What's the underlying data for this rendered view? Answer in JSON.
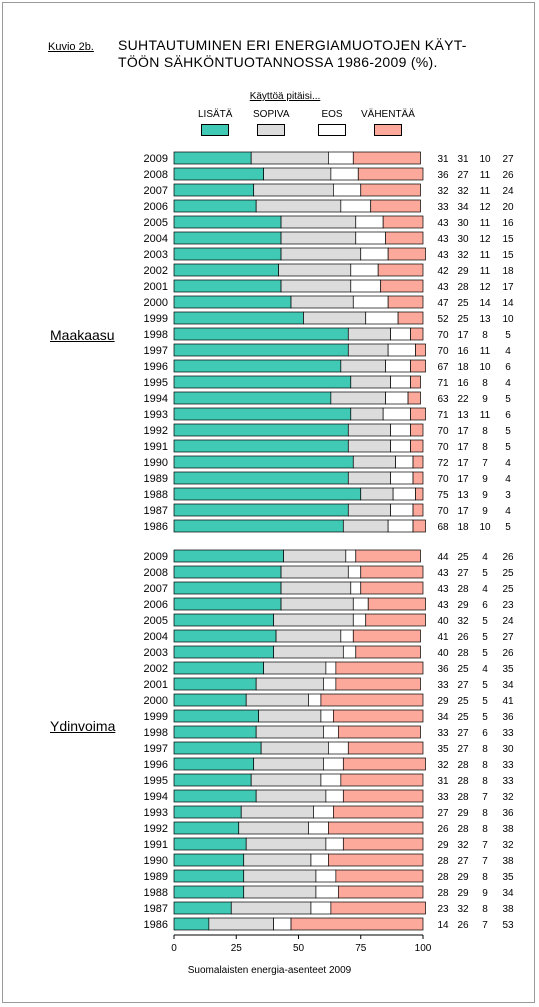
{
  "figure_label": "Kuvio 2b.",
  "title": "SUHTAUTUMINEN ERI ENERGIAMUOTOJEN KÄYT-TÖÖN SÄHKÖNTUOTANNOSSA 1986-2009 (%).",
  "title_line1": "SUHTAUTUMINEN ERI ENERGIAMUOTOJEN KÄYT-",
  "title_line2": "TÖÖN SÄHKÖNTUOTANNOSSA 1986-2009 (%).",
  "source": "Suomalaisten energia-asenteet 2009",
  "colors": {
    "lisata": "#40c9b4",
    "sopiva": "#dcdcdc",
    "eos": "#ffffff",
    "vahentaa": "#fca89a"
  },
  "chart_data": {
    "type": "bar",
    "orientation": "horizontal",
    "stacked": true,
    "legend_title": "Käyttöä pitäisi...",
    "legend_placement": "top",
    "series_names": [
      "LISÄTÄ",
      "SOPIVA",
      "EOS",
      "VÄHENTÄÄ"
    ],
    "xlim": [
      0,
      100
    ],
    "xticks": [
      0,
      25,
      50,
      75,
      100
    ],
    "grid": false,
    "groups": [
      {
        "name": "Maakaasu",
        "rows": [
          {
            "year": "2009",
            "values": [
              31,
              31,
              10,
              27
            ]
          },
          {
            "year": "2008",
            "values": [
              36,
              27,
              11,
              26
            ]
          },
          {
            "year": "2007",
            "values": [
              32,
              32,
              11,
              24
            ]
          },
          {
            "year": "2006",
            "values": [
              33,
              34,
              12,
              20
            ]
          },
          {
            "year": "2005",
            "values": [
              43,
              30,
              11,
              16
            ]
          },
          {
            "year": "2004",
            "values": [
              43,
              30,
              12,
              15
            ]
          },
          {
            "year": "2003",
            "values": [
              43,
              32,
              11,
              15
            ]
          },
          {
            "year": "2002",
            "values": [
              42,
              29,
              11,
              18
            ]
          },
          {
            "year": "2001",
            "values": [
              43,
              28,
              12,
              17
            ]
          },
          {
            "year": "2000",
            "values": [
              47,
              25,
              14,
              14
            ]
          },
          {
            "year": "1999",
            "values": [
              52,
              25,
              13,
              10
            ]
          },
          {
            "year": "1998",
            "values": [
              70,
              17,
              8,
              5
            ]
          },
          {
            "year": "1997",
            "values": [
              70,
              16,
              11,
              4
            ]
          },
          {
            "year": "1996",
            "values": [
              67,
              18,
              10,
              6
            ]
          },
          {
            "year": "1995",
            "values": [
              71,
              16,
              8,
              4
            ]
          },
          {
            "year": "1994",
            "values": [
              63,
              22,
              9,
              5
            ]
          },
          {
            "year": "1993",
            "values": [
              71,
              13,
              11,
              6
            ]
          },
          {
            "year": "1992",
            "values": [
              70,
              17,
              8,
              5
            ]
          },
          {
            "year": "1991",
            "values": [
              70,
              17,
              8,
              5
            ]
          },
          {
            "year": "1990",
            "values": [
              72,
              17,
              7,
              4
            ]
          },
          {
            "year": "1989",
            "values": [
              70,
              17,
              9,
              4
            ]
          },
          {
            "year": "1988",
            "values": [
              75,
              13,
              9,
              3
            ]
          },
          {
            "year": "1987",
            "values": [
              70,
              17,
              9,
              4
            ]
          },
          {
            "year": "1986",
            "values": [
              68,
              18,
              10,
              5
            ]
          }
        ]
      },
      {
        "name": "Ydinvoima",
        "rows": [
          {
            "year": "2009",
            "values": [
              44,
              25,
              4,
              26
            ]
          },
          {
            "year": "2008",
            "values": [
              43,
              27,
              5,
              25
            ]
          },
          {
            "year": "2007",
            "values": [
              43,
              28,
              4,
              25
            ]
          },
          {
            "year": "2006",
            "values": [
              43,
              29,
              6,
              23
            ]
          },
          {
            "year": "2005",
            "values": [
              40,
              32,
              5,
              24
            ]
          },
          {
            "year": "2004",
            "values": [
              41,
              26,
              5,
              27
            ]
          },
          {
            "year": "2003",
            "values": [
              40,
              28,
              5,
              26
            ]
          },
          {
            "year": "2002",
            "values": [
              36,
              25,
              4,
              35
            ]
          },
          {
            "year": "2001",
            "values": [
              33,
              27,
              5,
              34
            ]
          },
          {
            "year": "2000",
            "values": [
              29,
              25,
              5,
              41
            ]
          },
          {
            "year": "1999",
            "values": [
              34,
              25,
              5,
              36
            ]
          },
          {
            "year": "1998",
            "values": [
              33,
              27,
              6,
              33
            ]
          },
          {
            "year": "1997",
            "values": [
              35,
              27,
              8,
              30
            ]
          },
          {
            "year": "1996",
            "values": [
              32,
              28,
              8,
              33
            ]
          },
          {
            "year": "1995",
            "values": [
              31,
              28,
              8,
              33
            ]
          },
          {
            "year": "1994",
            "values": [
              33,
              28,
              7,
              32
            ]
          },
          {
            "year": "1993",
            "values": [
              27,
              29,
              8,
              36
            ]
          },
          {
            "year": "1992",
            "values": [
              26,
              28,
              8,
              38
            ]
          },
          {
            "year": "1991",
            "values": [
              29,
              32,
              7,
              32
            ]
          },
          {
            "year": "1990",
            "values": [
              28,
              27,
              7,
              38
            ]
          },
          {
            "year": "1989",
            "values": [
              28,
              29,
              8,
              35
            ]
          },
          {
            "year": "1988",
            "values": [
              28,
              29,
              9,
              34
            ]
          },
          {
            "year": "1987",
            "values": [
              23,
              32,
              8,
              38
            ]
          },
          {
            "year": "1986",
            "values": [
              14,
              26,
              7,
              53
            ]
          }
        ]
      }
    ]
  }
}
